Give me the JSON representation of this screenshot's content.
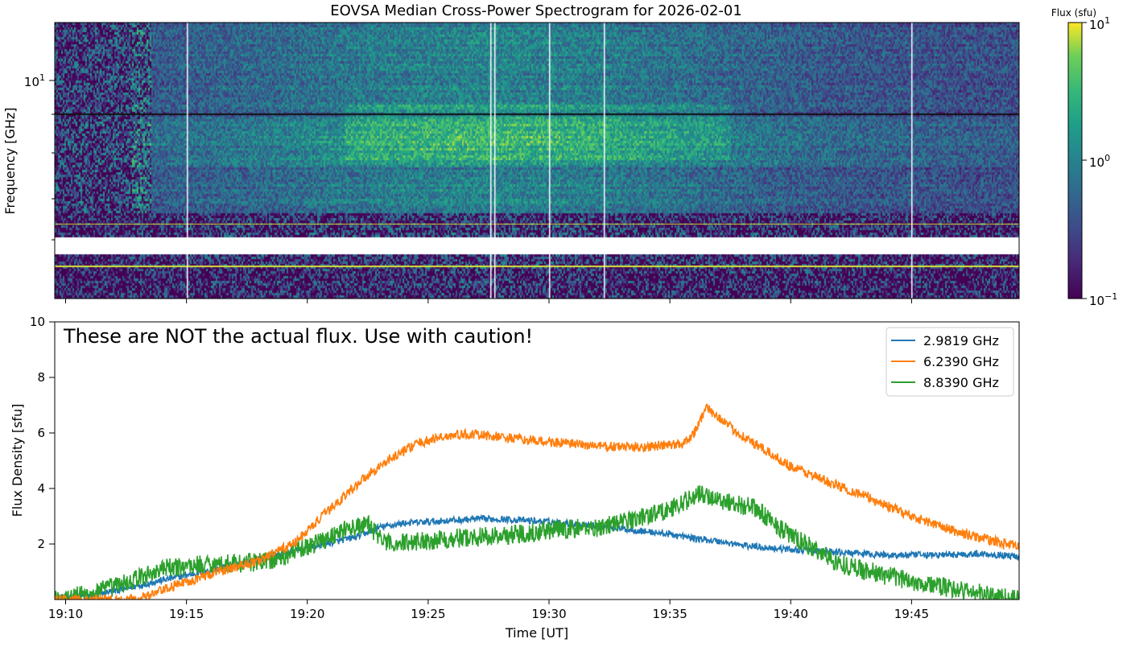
{
  "chart_data": [
    {
      "type": "heatmap",
      "title": "EOVSA Median Cross-Power Spectrogram for 2026-02-01",
      "ylabel": "Frequency [GHz]",
      "yscale": "log",
      "ytick_label_base": "10",
      "ytick_label_exp": "1",
      "colorbar": {
        "label": "Flux (sfu)",
        "scale": "log",
        "colormap": "viridis",
        "range": [
          0.1,
          10
        ],
        "ticks": [
          {
            "base": "10",
            "exp": "1"
          },
          {
            "base": "10",
            "exp": "0"
          },
          {
            "base": "10",
            "exp": "−1"
          }
        ]
      },
      "x_range": [
        "19:09:30",
        "19:49:30"
      ],
      "data_gap_freq_band": "no data band near 2.0 GHz",
      "gap_times": [
        "19:15",
        "19:27:35",
        "19:27:45",
        "19:30",
        "19:32:15",
        "19:45"
      ]
    },
    {
      "type": "line",
      "annotation": "These are NOT the actual flux. Use with caution!",
      "xlabel": "Time [UT]",
      "ylabel": "Flux Density [sfu]",
      "ylim": [
        0,
        10
      ],
      "yticks": [
        "2",
        "4",
        "6",
        "8",
        "10"
      ],
      "x_start_min": 9.55,
      "x_end_min": 49.45,
      "xticks": [
        "19:10",
        "19:15",
        "19:20",
        "19:25",
        "19:30",
        "19:35",
        "19:40",
        "19:45"
      ],
      "xtick_minutes": [
        10,
        15,
        20,
        25,
        30,
        35,
        40,
        45
      ],
      "legend_position": "upper right",
      "series": [
        {
          "name": "2.9819 GHz",
          "color": "#1f77b4",
          "x": [
            9.6,
            11,
            12.5,
            14,
            16,
            17.5,
            19,
            20.5,
            22,
            23,
            24,
            25,
            26,
            27,
            28,
            30,
            31.5,
            33,
            35,
            36,
            37,
            38,
            40,
            42,
            44,
            46,
            48,
            49.4
          ],
          "values": [
            0.05,
            0.15,
            0.4,
            0.7,
            1.05,
            1.35,
            1.65,
            1.95,
            2.25,
            2.6,
            2.75,
            2.8,
            2.85,
            2.9,
            2.9,
            2.8,
            2.7,
            2.55,
            2.35,
            2.2,
            2.1,
            1.95,
            1.8,
            1.7,
            1.6,
            1.6,
            1.65,
            1.55
          ]
        },
        {
          "name": "6.2390 GHz",
          "color": "#ff7f0e",
          "x": [
            9.6,
            13,
            15,
            16.5,
            18,
            19.5,
            20.5,
            21.5,
            22.5,
            23.5,
            24.5,
            25.5,
            26.5,
            27.5,
            29,
            31,
            32.5,
            34,
            35.5,
            36,
            36.5,
            37,
            37.5,
            38.5,
            40,
            41.5,
            43,
            45,
            47,
            49.4
          ],
          "values": [
            0.0,
            0.0,
            0.65,
            1.05,
            1.4,
            2.05,
            2.9,
            3.7,
            4.5,
            5.1,
            5.6,
            5.85,
            5.95,
            5.9,
            5.75,
            5.6,
            5.5,
            5.5,
            5.6,
            6.0,
            6.9,
            6.6,
            6.2,
            5.6,
            4.8,
            4.25,
            3.75,
            3.0,
            2.4,
            1.9
          ]
        },
        {
          "name": "8.8390 GHz",
          "color": "#2ca02c",
          "x": [
            9.6,
            11,
            12.5,
            14,
            15.5,
            17,
            18.5,
            20,
            21.5,
            22.5,
            23.3,
            24.5,
            26,
            28,
            30,
            32,
            33.5,
            35,
            36.2,
            37.5,
            38.5,
            40,
            42,
            44,
            46,
            48,
            49.4
          ],
          "values": [
            0.05,
            0.2,
            0.6,
            1.1,
            1.25,
            1.3,
            1.4,
            1.9,
            2.5,
            2.7,
            2.0,
            2.1,
            2.2,
            2.3,
            2.5,
            2.6,
            2.9,
            3.25,
            3.8,
            3.5,
            3.3,
            2.3,
            1.3,
            0.85,
            0.5,
            0.2,
            0.0
          ]
        }
      ]
    }
  ]
}
